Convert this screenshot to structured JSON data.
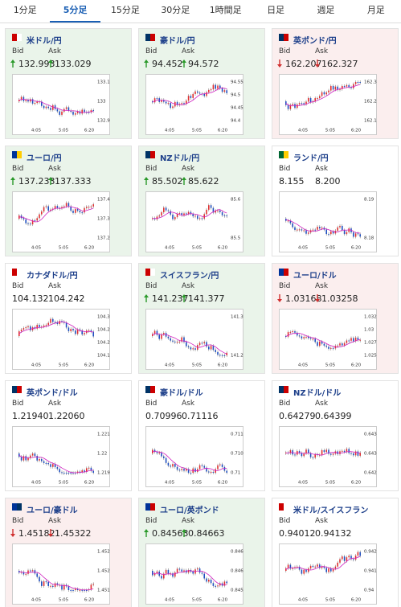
{
  "tabs": [
    "1分足",
    "5分足",
    "15分足",
    "30分足",
    "1時間足",
    "日足",
    "週足",
    "月足"
  ],
  "active_tab": 1,
  "bid_label": "Bid",
  "ask_label": "Ask",
  "cards": [
    {
      "pair": "米ドル/円",
      "direction": "up",
      "bid": "132.993",
      "ask": "133.029",
      "yticks": [
        "133.1",
        "133",
        "132.9"
      ],
      "xticks": [
        "4:05",
        "5:05",
        "6:20"
      ]
    },
    {
      "pair": "豪ドル/円",
      "direction": "up",
      "bid": "94.452",
      "ask": "94.572",
      "yticks": [
        "94.55",
        "94.5",
        "94.45",
        "94.4"
      ],
      "xticks": [
        "4:05",
        "5:05",
        "6:20"
      ]
    },
    {
      "pair": "英ポンド/円",
      "direction": "down",
      "bid": "162.207",
      "ask": "162.327",
      "yticks": [
        "162.3",
        "162.2",
        "162.1"
      ],
      "xticks": [
        "4:05",
        "5:05",
        "6:20"
      ]
    },
    {
      "pair": "ユーロ/円",
      "direction": "up",
      "bid": "137.233",
      "ask": "137.333",
      "yticks": [
        "137.4",
        "137.3",
        "137.2"
      ],
      "xticks": [
        "4:05",
        "5:05",
        "6:20"
      ]
    },
    {
      "pair": "NZドル/円",
      "direction": "up",
      "bid": "85.502",
      "ask": "85.622",
      "yticks": [
        "85.6",
        "85.5"
      ],
      "xticks": [
        "4:05",
        "5:05",
        "6:20"
      ]
    },
    {
      "pair": "ランド/円",
      "direction": null,
      "bid": "8.155",
      "ask": "8.200",
      "yticks": [
        "8.19",
        "8.18"
      ],
      "xticks": [
        "4:05",
        "5:05",
        "6:20"
      ]
    },
    {
      "pair": "カナダドル/円",
      "direction": null,
      "bid": "104.132",
      "ask": "104.242",
      "yticks": [
        "104.3",
        "104.25",
        "104.2",
        "104.15"
      ],
      "xticks": [
        "4:05",
        "5:05",
        "6:20"
      ]
    },
    {
      "pair": "スイスフラン/円",
      "direction": "up",
      "bid": "141.237",
      "ask": "141.377",
      "yticks": [
        "141.3",
        "141.2"
      ],
      "xticks": [
        "4:05",
        "5:05",
        "6:20"
      ]
    },
    {
      "pair": "ユーロ/ドル",
      "direction": "down",
      "bid": "1.03168",
      "ask": "1.03258",
      "yticks": [
        "1.0325",
        "1.03",
        "1.0275",
        "1.025"
      ],
      "xticks": [
        "4:05",
        "5:05",
        "6:20"
      ]
    },
    {
      "pair": "英ポンド/ドル",
      "direction": null,
      "bid": "1.21940",
      "ask": "1.22060",
      "yticks": [
        "1.221",
        "1.22",
        "1.219"
      ],
      "xticks": [
        "4:05",
        "5:05",
        "6:20"
      ]
    },
    {
      "pair": "豪ドル/ドル",
      "direction": null,
      "bid": "0.70996",
      "ask": "0.71116",
      "yticks": [
        "0.711",
        "0.7105",
        "0.71"
      ],
      "xticks": [
        "4:05",
        "5:05",
        "6:20"
      ]
    },
    {
      "pair": "NZドル/ドル",
      "direction": null,
      "bid": "0.64279",
      "ask": "0.64399",
      "yticks": [
        "0.6435",
        "0.643",
        "0.6425"
      ],
      "xticks": [
        "4:05",
        "5:05",
        "6:20"
      ]
    },
    {
      "pair": "ユーロ/豪ドル",
      "direction": "down",
      "bid": "1.45182",
      "ask": "1.45322",
      "yticks": [
        "1.4525",
        "1.452",
        "1.4515"
      ],
      "xticks": [
        "4:05",
        "5:05",
        "6:20"
      ]
    },
    {
      "pair": "ユーロ/英ポンド",
      "direction": "up",
      "bid": "0.84563",
      "ask": "0.84663",
      "yticks": [
        "0.8465",
        "0.846",
        "0.8455"
      ],
      "xticks": [
        "4:05",
        "5:05",
        "6:20"
      ]
    },
    {
      "pair": "米ドル/スイスフラン",
      "direction": null,
      "bid": "0.94012",
      "ask": "0.94132",
      "yticks": [
        "0.942",
        "0.941",
        "0.94"
      ],
      "xticks": [
        "4:05",
        "5:05",
        "6:20"
      ]
    }
  ]
}
